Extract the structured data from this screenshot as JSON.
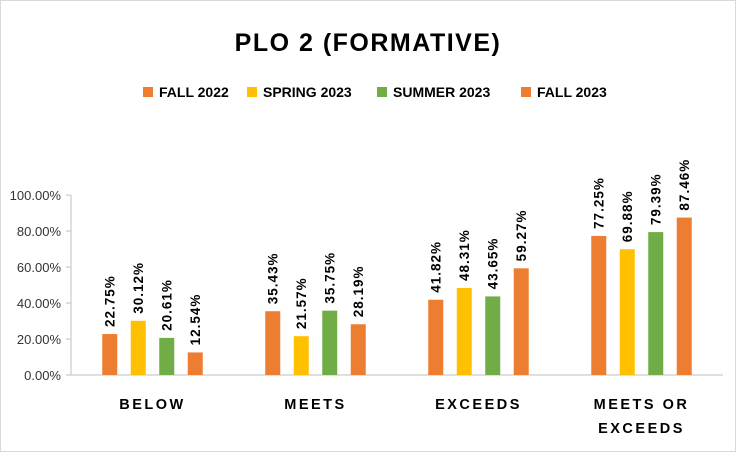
{
  "chart_data": {
    "type": "bar",
    "title": "PLO 2 (FORMATIVE)",
    "xlabel": "",
    "ylabel": "",
    "ylim": [
      0,
      100
    ],
    "yticks": [
      "0.00%",
      "20.00%",
      "40.00%",
      "60.00%",
      "80.00%",
      "100.00%"
    ],
    "ytick_values": [
      0,
      20,
      40,
      60,
      80,
      100
    ],
    "grid": false,
    "legend_position": "top",
    "categories": [
      [
        "BELOW"
      ],
      [
        "MEETS"
      ],
      [
        "EXCEEDS"
      ],
      [
        "MEETS OR",
        "EXCEEDS"
      ]
    ],
    "series": [
      {
        "name": "FALL 2022",
        "color": "#ED7D31",
        "values": [
          22.75,
          35.43,
          41.82,
          77.25
        ],
        "labels": [
          "22.75%",
          "35.43%",
          "41.82%",
          "77.25%"
        ]
      },
      {
        "name": "SPRING 2023",
        "color": "#FFC000",
        "values": [
          30.12,
          21.57,
          48.31,
          69.88
        ],
        "labels": [
          "30.12%",
          "21.57%",
          "48.31%",
          "69.88%"
        ]
      },
      {
        "name": "SUMMER 2023",
        "color": "#70AD47",
        "values": [
          20.61,
          35.75,
          43.65,
          79.39
        ],
        "labels": [
          "20.61%",
          "35.75%",
          "43.65%",
          "79.39%"
        ]
      },
      {
        "name": "FALL 2023",
        "color": "#ED7D31",
        "values": [
          12.54,
          28.19,
          59.27,
          87.46
        ],
        "labels": [
          "12.54%",
          "28.19%",
          "59.27%",
          "87.46%"
        ]
      }
    ]
  }
}
